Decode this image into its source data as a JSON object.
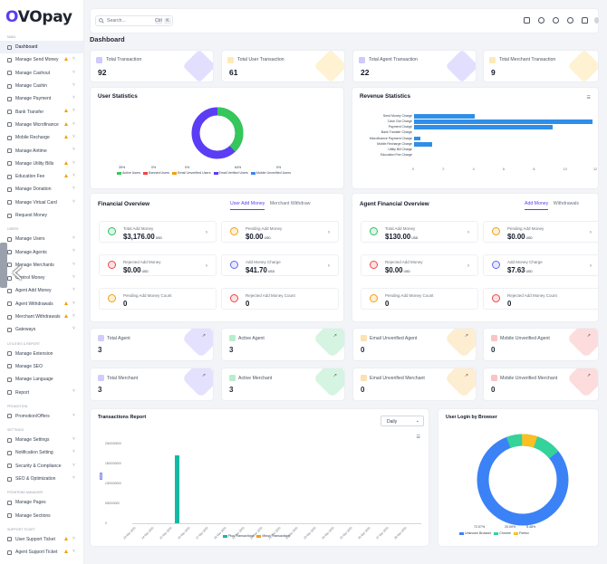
{
  "brand": {
    "name_o": "O",
    "name_rest": "VOpay"
  },
  "sidebar": {
    "sections": [
      "Main",
      "Users",
      "Utilities & Report",
      "Promotion",
      "Settings",
      "Frontend Manager",
      "Support Ticket"
    ],
    "items": [
      {
        "label": "Dashboard",
        "icon": "dashboard-icon",
        "active": true
      },
      {
        "label": "Manage Send Money",
        "icon": "send-icon",
        "warn": true,
        "chev": true
      },
      {
        "label": "Manage Cashout",
        "icon": "cashout-icon",
        "chev": true
      },
      {
        "label": "Manage Cashin",
        "icon": "cashin-icon",
        "chev": true
      },
      {
        "label": "Manage Payment",
        "icon": "payment-icon",
        "chev": true
      },
      {
        "label": "Bank Transfer",
        "icon": "bank-icon",
        "warn": true,
        "chev": true
      },
      {
        "label": "Manage Microfinance",
        "icon": "microfinance-icon",
        "warn": true,
        "chev": true
      },
      {
        "label": "Mobile Recharge",
        "icon": "mobile-icon",
        "warn": true,
        "chev": true
      },
      {
        "label": "Manage Airtime",
        "icon": "airtime-icon",
        "chev": true
      },
      {
        "label": "Manage Utility Bills",
        "icon": "bill-icon",
        "warn": true,
        "chev": true
      },
      {
        "label": "Education Fee",
        "icon": "education-icon",
        "warn": true,
        "chev": true
      },
      {
        "label": "Manage Donation",
        "icon": "donation-icon",
        "chev": true
      },
      {
        "label": "Manage Virtual Card",
        "icon": "card-icon",
        "chev": true
      },
      {
        "label": "Request Money",
        "icon": "request-icon"
      },
      {
        "label": "Manage Users",
        "icon": "users-icon",
        "chev": true
      },
      {
        "label": "Manage Agents",
        "icon": "agents-icon",
        "chev": true
      },
      {
        "label": "Manage Merchants",
        "icon": "merchants-icon",
        "chev": true
      },
      {
        "label": "Control Money",
        "icon": "control-icon",
        "chev": true
      },
      {
        "label": "Agent Add Money",
        "icon": "add-money-icon",
        "chev": true
      },
      {
        "label": "Agent Withdrawals",
        "icon": "withdraw-icon",
        "warn": true,
        "chev": true
      },
      {
        "label": "Merchant Withdrawals",
        "icon": "withdraw-icon",
        "warn": true,
        "chev": true
      },
      {
        "label": "Gateways",
        "icon": "gateway-icon",
        "chev": true
      },
      {
        "label": "Manage Extension",
        "icon": "extension-icon"
      },
      {
        "label": "Manage SEO",
        "icon": "seo-icon"
      },
      {
        "label": "Manage Language",
        "icon": "language-icon"
      },
      {
        "label": "Report",
        "icon": "report-icon",
        "chev": true
      },
      {
        "label": "Promotion/Offers",
        "icon": "promo-icon",
        "chev": true
      },
      {
        "label": "Manage Settings",
        "icon": "settings-icon",
        "chev": true
      },
      {
        "label": "Notification Setting",
        "icon": "bell-icon",
        "chev": true
      },
      {
        "label": "Security & Compliance",
        "icon": "shield-icon",
        "chev": true
      },
      {
        "label": "SEO & Optimization",
        "icon": "seo-icon",
        "chev": true
      },
      {
        "label": "Manage Pages",
        "icon": "pages-icon"
      },
      {
        "label": "Manage Sections",
        "icon": "sections-icon"
      },
      {
        "label": "User Support Ticket",
        "icon": "ticket-icon",
        "warn": true,
        "chev": true
      },
      {
        "label": "Agent Support Ticket",
        "icon": "ticket-icon",
        "warn": true,
        "chev": true
      }
    ]
  },
  "topbar": {
    "search_placeholder": "Search...",
    "kbd1": "Ctrl",
    "kbd2": "K"
  },
  "page_title": "Dashboard",
  "stats": [
    {
      "label": "Total Transaction",
      "value": "92",
      "color": "#6d5dfc"
    },
    {
      "label": "Total User Transaction",
      "value": "61",
      "color": "#fbbf24"
    },
    {
      "label": "Total Agent Transaction",
      "value": "22",
      "color": "#6d5dfc"
    },
    {
      "label": "Total Merchant Transaction",
      "value": "9",
      "color": "#fbbf24"
    }
  ],
  "user_stats": {
    "title": "User Statistics",
    "legend": [
      "Active Users",
      "Banned Users",
      "Email Unverified Users",
      "Email Verified Users",
      "Mobile Unverified Users"
    ],
    "percentages": [
      "39%",
      "0%",
      "0%",
      "64%",
      "0%"
    ],
    "colors": [
      "#34c759",
      "#ef4444",
      "#f59e0b",
      "#5b3df5",
      "#3b82f6"
    ]
  },
  "revenue": {
    "title": "Revenue Statistics",
    "categories": [
      "Send Money Charge",
      "Cash Out Charge",
      "Payment Charge",
      "Bank Transfer Charge",
      "Microfinance Payment Charge",
      "Mobile Recharge Charge",
      "Utility Bill Charge",
      "Education Fee Charge"
    ],
    "values": [
      4,
      11.8,
      9.2,
      0,
      0.4,
      1.2,
      0,
      0
    ],
    "ticks": [
      "0",
      "2",
      "4",
      "6",
      "8",
      "10",
      "12"
    ]
  },
  "financial": {
    "title": "Financial Overview",
    "tab_active": "User Add Money",
    "tab_other": "Merchant Withdraw",
    "items": [
      {
        "label": "Total Add Money",
        "value": "$3,176.00",
        "unit": "USD",
        "color": "#22c55e"
      },
      {
        "label": "Pending Add Money",
        "value": "$0.00",
        "unit": "USD",
        "color": "#f59e0b"
      },
      {
        "label": "Rejected Add Money",
        "value": "$0.00",
        "unit": "USD",
        "color": "#ef4444"
      },
      {
        "label": "Add Money Charge",
        "value": "$41.70",
        "unit": "USD",
        "color": "#6366f1"
      },
      {
        "label": "Pending Add Money Count",
        "value": "0",
        "unit": "",
        "color": "#f59e0b"
      },
      {
        "label": "Rejected Add Money Count",
        "value": "0",
        "unit": "",
        "color": "#ef4444"
      }
    ]
  },
  "agent_financial": {
    "title": "Agent Financial Overview",
    "tab_active": "Add Money",
    "tab_other": "Withdrawals",
    "items": [
      {
        "label": "Total Add Money",
        "value": "$130.00",
        "unit": "USD",
        "color": "#22c55e"
      },
      {
        "label": "Pending Add Money",
        "value": "$0.00",
        "unit": "USD",
        "color": "#f59e0b"
      },
      {
        "label": "Rejected Add Money",
        "value": "$0.00",
        "unit": "USD",
        "color": "#ef4444"
      },
      {
        "label": "Add Money Charge",
        "value": "$7.63",
        "unit": "USD",
        "color": "#6366f1"
      },
      {
        "label": "Pending Add Money Count",
        "value": "0",
        "unit": "",
        "color": "#f59e0b"
      },
      {
        "label": "Rejected Add Money Count",
        "value": "0",
        "unit": "",
        "color": "#ef4444"
      }
    ]
  },
  "agents_row": [
    {
      "label": "Total Agent",
      "value": "3",
      "color": "#6d5dfc"
    },
    {
      "label": "Active Agent",
      "value": "3",
      "color": "#22c55e"
    },
    {
      "label": "Email Unverified Agent",
      "value": "0",
      "color": "#f59e0b"
    },
    {
      "label": "Mobile Unverified Agent",
      "value": "0",
      "color": "#ef4444"
    }
  ],
  "merchants_row": [
    {
      "label": "Total Merchant",
      "value": "3",
      "color": "#6d5dfc"
    },
    {
      "label": "Active Merchant",
      "value": "3",
      "color": "#22c55e"
    },
    {
      "label": "Email Unverified Merchant",
      "value": "0",
      "color": "#f59e0b"
    },
    {
      "label": "Mobile Unverified Merchant",
      "value": "0",
      "color": "#ef4444"
    }
  ],
  "transactions": {
    "title": "Transactions Report",
    "select": "Daily",
    "legend": [
      "Plus Transactions",
      "Minus Transactions"
    ],
    "dates": [
      "13 Mar 2025",
      "14 Mar 2025",
      "15 Mar 2025",
      "16 Mar 2025",
      "17 Mar 2025",
      "18 Mar 2025",
      "19 Mar 2025",
      "20 Mar 2025",
      "21 Mar 2025",
      "22 Mar 2025",
      "23 Mar 2025",
      "24 Mar 2025",
      "25 Mar 2025",
      "26 Mar 2025",
      "27 Mar 2025",
      "28 Mar 2025"
    ],
    "yticks": [
      "2000000000",
      "1500000000",
      "1000000000",
      "500000000",
      "0"
    ]
  },
  "browser": {
    "title": "User Login by Browser",
    "legend": [
      "Unknown Browser",
      "Chrome",
      "Firefox"
    ],
    "percentages": [
      "72.07%",
      "20.00%",
      "5.48%"
    ],
    "colors": [
      "#3b82f6",
      "#34d399",
      "#fbbf24"
    ]
  },
  "chart_data": [
    {
      "type": "pie",
      "title": "User Statistics",
      "categories": [
        "Active Users",
        "Banned Users",
        "Email Unverified Users",
        "Email Verified Users",
        "Mobile Unverified Users"
      ],
      "values": [
        39,
        0,
        0,
        64,
        0
      ]
    },
    {
      "type": "bar",
      "title": "Revenue Statistics",
      "categories": [
        "Send Money Charge",
        "Cash Out Charge",
        "Payment Charge",
        "Bank Transfer Charge",
        "Microfinance Payment Charge",
        "Mobile Recharge Charge",
        "Utility Bill Charge",
        "Education Fee Charge"
      ],
      "values": [
        4,
        11.8,
        9.2,
        0,
        0.4,
        1.2,
        0,
        0
      ],
      "xlim": [
        0,
        12
      ]
    },
    {
      "type": "bar",
      "title": "Transactions Report",
      "categories": [
        "13 Mar 2025",
        "14 Mar 2025",
        "15 Mar 2025",
        "16 Mar 2025",
        "17 Mar 2025",
        "18 Mar 2025",
        "19 Mar 2025",
        "20 Mar 2025",
        "21 Mar 2025",
        "22 Mar 2025",
        "23 Mar 2025",
        "24 Mar 2025",
        "25 Mar 2025",
        "26 Mar 2025",
        "27 Mar 2025",
        "28 Mar 2025"
      ],
      "series": [
        {
          "name": "Plus Transactions",
          "values": [
            0,
            0,
            1700000000,
            0,
            0,
            0,
            0,
            0,
            0,
            0,
            0,
            0,
            0,
            0,
            0,
            0
          ]
        },
        {
          "name": "Minus Transactions",
          "values": [
            0,
            0,
            0,
            0,
            0,
            0,
            0,
            0,
            0,
            0,
            0,
            0,
            0,
            0,
            0,
            0
          ]
        }
      ],
      "ylim": [
        0,
        2000000000
      ]
    },
    {
      "type": "pie",
      "title": "User Login by Browser",
      "categories": [
        "Unknown Browser",
        "Chrome",
        "Firefox"
      ],
      "values": [
        72.07,
        20.0,
        5.48
      ]
    }
  ]
}
